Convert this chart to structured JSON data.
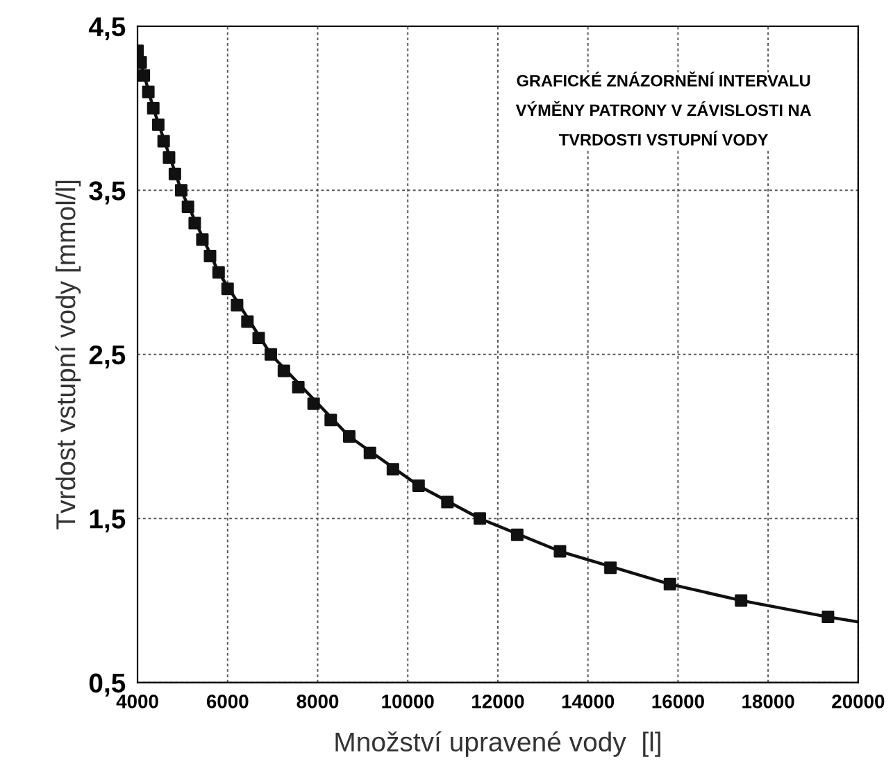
{
  "chart_data": {
    "type": "line",
    "xlabel": "Množství upravené vody  [l]",
    "ylabel": "Tvrdost vstupní vody [mmol/l]",
    "annotations": [
      "GRAFICKÉ ZNÁZORNĚNÍ INTERVALU\nVÝMĚNY PATRONY V ZÁVISLOSTI NA\nTVRDOSTI VSTUPNÍ VODY"
    ],
    "series": [
      {
        "color": "#111111",
        "marker": "none",
        "x": [
          4000,
          4350,
          4970,
          5800,
          6960,
          8700,
          10240,
          11600,
          13380,
          15820,
          17400,
          19330,
          20000
        ],
        "values": [
          4.35,
          4.0,
          3.5,
          3.0,
          2.5,
          2.0,
          1.7,
          1.5,
          1.3,
          1.1,
          1.0,
          0.9,
          0.87
        ]
      },
      {
        "type": "scatter",
        "color": "#111111",
        "marker": "square",
        "x": [
          4000,
          4070,
          4140,
          4240,
          4350,
          4460,
          4580,
          4700,
          4830,
          4970,
          5120,
          5270,
          5440,
          5610,
          5800,
          6000,
          6210,
          6440,
          6690,
          6960,
          7250,
          7570,
          7910,
          8290,
          8700,
          9160,
          9670,
          10240,
          10880,
          11600,
          12430,
          13380,
          14500,
          15820,
          17400,
          19330
        ],
        "values": [
          4.35,
          4.28,
          4.2,
          4.1,
          4.0,
          3.9,
          3.8,
          3.7,
          3.6,
          3.5,
          3.4,
          3.3,
          3.2,
          3.1,
          3.0,
          2.9,
          2.8,
          2.7,
          2.6,
          2.5,
          2.4,
          2.3,
          2.2,
          2.1,
          2.0,
          1.9,
          1.8,
          1.7,
          1.6,
          1.5,
          1.4,
          1.3,
          1.2,
          1.1,
          1.0,
          0.9
        ]
      }
    ],
    "xlim": [
      4000,
      20000
    ],
    "xticks": [
      4000,
      6000,
      8000,
      10000,
      12000,
      14000,
      16000,
      18000,
      20000
    ],
    "ylim": [
      0.5,
      4.5
    ],
    "yticks": [
      {
        "value": 0.5,
        "label": "0,5"
      },
      {
        "value": 1.5,
        "label": "1,5"
      },
      {
        "value": 2.5,
        "label": "2,5"
      },
      {
        "value": 3.5,
        "label": "3,5"
      },
      {
        "value": 4.5,
        "label": "4,5"
      }
    ],
    "grid": true,
    "line_style": "solid"
  }
}
